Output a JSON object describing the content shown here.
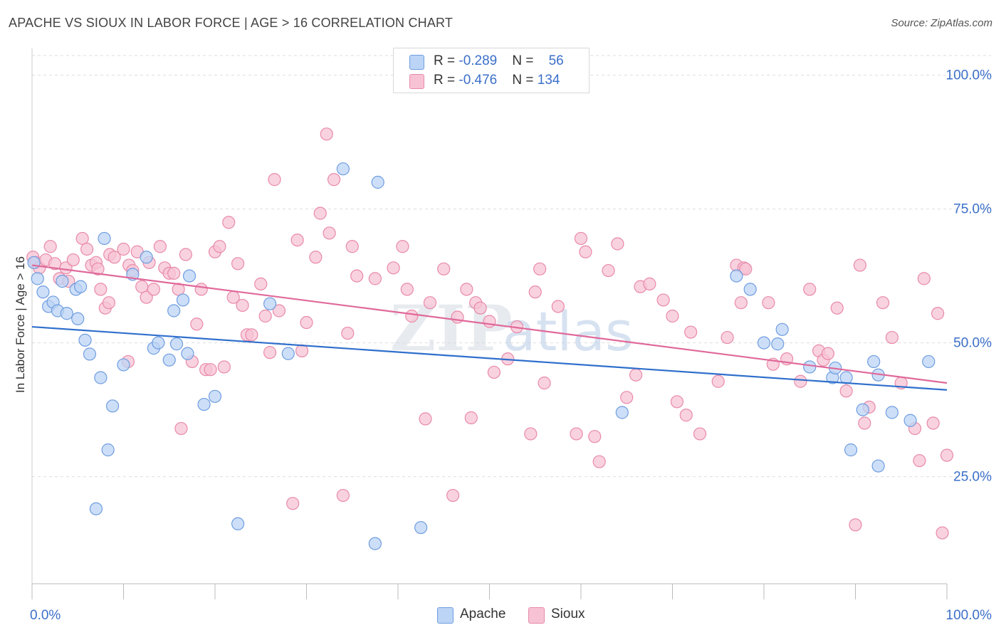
{
  "header": {
    "title": "APACHE VS SIOUX IN LABOR FORCE | AGE > 16 CORRELATION CHART",
    "source": "Source: ZipAtlas.com"
  },
  "watermark": {
    "zip": "ZIP",
    "atlas": "atlas"
  },
  "legend": {
    "rows": [
      {
        "r_label": "R = ",
        "r_value": "-0.289",
        "n_label": "N = ",
        "n_value": "56"
      },
      {
        "r_label": "R = ",
        "r_value": "-0.476",
        "n_label": "N = ",
        "n_value": "134"
      }
    ]
  },
  "colors": {
    "apache_fill": "#bcd4f5",
    "apache_stroke": "#6f9de0",
    "apache_line": "#2f6fcc",
    "sioux_fill": "#f7c3d4",
    "sioux_stroke": "#e88aa8",
    "sioux_line": "#e0699a",
    "axis_text": "#3b6fc9",
    "grid": "#dddddd"
  },
  "chart_data": {
    "type": "scatter",
    "title": "APACHE VS SIOUX IN LABOR FORCE | AGE > 16 CORRELATION CHART",
    "xlabel": "",
    "ylabel": "In Labor Force | Age > 16",
    "xlim": [
      0,
      100
    ],
    "ylim": [
      5,
      105
    ],
    "x_tick_labels": [
      "0.0%",
      "100.0%"
    ],
    "y_ticks": [
      25,
      50,
      75,
      100
    ],
    "y_tick_labels": [
      "25.0%",
      "50.0%",
      "75.0%",
      "100.0%"
    ],
    "grid": "horizontal dashed",
    "legend_position": "top-center",
    "series": [
      {
        "name": "Apache",
        "r": -0.289,
        "n": 56,
        "trend": {
          "x": [
            0,
            100
          ],
          "y": [
            53.0,
            41.2
          ]
        },
        "points": [
          [
            0.2,
            65.0
          ],
          [
            0.6,
            62.0
          ],
          [
            1.2,
            59.5
          ],
          [
            1.8,
            56.8
          ],
          [
            2.3,
            57.6
          ],
          [
            2.8,
            56.0
          ],
          [
            3.3,
            61.5
          ],
          [
            3.8,
            55.5
          ],
          [
            4.8,
            60.0
          ],
          [
            5.0,
            54.5
          ],
          [
            5.3,
            60.5
          ],
          [
            5.8,
            50.5
          ],
          [
            6.3,
            47.9
          ],
          [
            7.0,
            19.0
          ],
          [
            7.5,
            43.5
          ],
          [
            7.9,
            69.5
          ],
          [
            8.3,
            30.0
          ],
          [
            8.8,
            38.2
          ],
          [
            10.0,
            45.9
          ],
          [
            11.0,
            62.8
          ],
          [
            12.5,
            66.0
          ],
          [
            13.3,
            49.0
          ],
          [
            13.8,
            50.0
          ],
          [
            15.0,
            46.8
          ],
          [
            15.5,
            56.0
          ],
          [
            15.8,
            49.8
          ],
          [
            16.5,
            58.0
          ],
          [
            17.0,
            48.0
          ],
          [
            17.2,
            62.5
          ],
          [
            18.8,
            38.5
          ],
          [
            20.0,
            40.0
          ],
          [
            22.5,
            16.2
          ],
          [
            26.0,
            57.3
          ],
          [
            28.0,
            48.0
          ],
          [
            34.0,
            82.5
          ],
          [
            37.5,
            12.5
          ],
          [
            37.8,
            80.0
          ],
          [
            42.5,
            15.5
          ],
          [
            64.5,
            37.0
          ],
          [
            77.0,
            62.5
          ],
          [
            78.5,
            60.0
          ],
          [
            80.0,
            50.0
          ],
          [
            81.5,
            49.8
          ],
          [
            82.0,
            52.5
          ],
          [
            85.0,
            45.5
          ],
          [
            87.5,
            43.5
          ],
          [
            87.8,
            45.3
          ],
          [
            89.0,
            43.5
          ],
          [
            89.5,
            30.0
          ],
          [
            90.8,
            37.5
          ],
          [
            92.5,
            27.0
          ],
          [
            92.0,
            46.5
          ],
          [
            92.5,
            44.0
          ],
          [
            94.0,
            37.0
          ],
          [
            96.0,
            35.5
          ],
          [
            98.0,
            46.5
          ]
        ]
      },
      {
        "name": "Sioux",
        "r": -0.476,
        "n": 134,
        "trend": {
          "x": [
            0,
            100
          ],
          "y": [
            64.5,
            42.5
          ]
        },
        "points": [
          [
            0.1,
            66.0
          ],
          [
            0.4,
            65.0
          ],
          [
            0.8,
            64.0
          ],
          [
            1.5,
            65.5
          ],
          [
            2.0,
            68.0
          ],
          [
            2.5,
            64.8
          ],
          [
            3.0,
            62.0
          ],
          [
            3.7,
            64.0
          ],
          [
            4.0,
            61.5
          ],
          [
            4.5,
            65.5
          ],
          [
            5.5,
            69.5
          ],
          [
            6.0,
            67.5
          ],
          [
            6.5,
            64.5
          ],
          [
            7.0,
            65.0
          ],
          [
            7.2,
            63.8
          ],
          [
            7.5,
            60.0
          ],
          [
            8.0,
            56.5
          ],
          [
            8.4,
            57.5
          ],
          [
            8.5,
            66.5
          ],
          [
            9.0,
            66.0
          ],
          [
            10.0,
            67.5
          ],
          [
            10.5,
            46.5
          ],
          [
            10.6,
            64.5
          ],
          [
            11.0,
            63.5
          ],
          [
            11.5,
            67.0
          ],
          [
            12.0,
            60.5
          ],
          [
            12.5,
            58.5
          ],
          [
            12.8,
            65.0
          ],
          [
            13.3,
            60.0
          ],
          [
            14.0,
            68.0
          ],
          [
            14.5,
            64.0
          ],
          [
            15.0,
            63.0
          ],
          [
            15.5,
            63.0
          ],
          [
            16.0,
            60.0
          ],
          [
            16.3,
            34.0
          ],
          [
            16.8,
            66.5
          ],
          [
            17.5,
            46.5
          ],
          [
            18.0,
            53.5
          ],
          [
            18.5,
            60.0
          ],
          [
            19.0,
            45.0
          ],
          [
            19.5,
            45.0
          ],
          [
            20.0,
            67.0
          ],
          [
            20.5,
            68.0
          ],
          [
            21.0,
            45.5
          ],
          [
            21.5,
            72.5
          ],
          [
            22.0,
            58.5
          ],
          [
            22.5,
            64.8
          ],
          [
            23.0,
            57.0
          ],
          [
            23.5,
            51.5
          ],
          [
            24.0,
            51.5
          ],
          [
            25.0,
            61.0
          ],
          [
            25.5,
            55.0
          ],
          [
            26.0,
            48.2
          ],
          [
            26.5,
            80.5
          ],
          [
            27.0,
            56.0
          ],
          [
            28.5,
            20.0
          ],
          [
            29.0,
            69.2
          ],
          [
            29.5,
            48.5
          ],
          [
            30.0,
            53.8
          ],
          [
            31.0,
            66.0
          ],
          [
            31.5,
            74.2
          ],
          [
            32.2,
            89.0
          ],
          [
            32.5,
            70.5
          ],
          [
            33.0,
            80.5
          ],
          [
            34.0,
            21.5
          ],
          [
            34.5,
            51.8
          ],
          [
            35.0,
            68.0
          ],
          [
            35.5,
            62.5
          ],
          [
            37.5,
            62.0
          ],
          [
            39.5,
            64.0
          ],
          [
            40.5,
            68.0
          ],
          [
            41.0,
            60.0
          ],
          [
            41.5,
            55.0
          ],
          [
            43.0,
            35.8
          ],
          [
            43.5,
            57.5
          ],
          [
            45.0,
            63.8
          ],
          [
            46.0,
            21.5
          ],
          [
            46.5,
            54.8
          ],
          [
            47.5,
            60.0
          ],
          [
            48.0,
            36.0
          ],
          [
            48.5,
            57.5
          ],
          [
            49.0,
            56.5
          ],
          [
            50.0,
            54.0
          ],
          [
            50.5,
            44.5
          ],
          [
            52.0,
            47.0
          ],
          [
            53.0,
            53.0
          ],
          [
            54.5,
            33.0
          ],
          [
            55.0,
            59.5
          ],
          [
            55.5,
            63.8
          ],
          [
            56.0,
            42.5
          ],
          [
            57.5,
            56.8
          ],
          [
            59.5,
            33.0
          ],
          [
            60.0,
            69.5
          ],
          [
            60.5,
            67.0
          ],
          [
            61.5,
            32.5
          ],
          [
            62.0,
            27.8
          ],
          [
            63.0,
            63.5
          ],
          [
            64.0,
            68.5
          ],
          [
            65.0,
            39.8
          ],
          [
            66.0,
            44.0
          ],
          [
            66.5,
            60.5
          ],
          [
            67.5,
            61.0
          ],
          [
            69.0,
            58.0
          ],
          [
            70.0,
            55.0
          ],
          [
            70.5,
            39.0
          ],
          [
            71.5,
            36.5
          ],
          [
            72.0,
            52.0
          ],
          [
            73.0,
            33.0
          ],
          [
            75.0,
            42.8
          ],
          [
            76.0,
            51.0
          ],
          [
            77.0,
            64.5
          ],
          [
            77.5,
            57.5
          ],
          [
            77.8,
            64.0
          ],
          [
            78.0,
            63.8
          ],
          [
            80.5,
            57.5
          ],
          [
            81.0,
            46.0
          ],
          [
            82.5,
            47.0
          ],
          [
            84.0,
            42.8
          ],
          [
            85.0,
            60.0
          ],
          [
            86.0,
            48.5
          ],
          [
            86.5,
            46.8
          ],
          [
            87.0,
            48.0
          ],
          [
            88.0,
            56.5
          ],
          [
            89.0,
            41.0
          ],
          [
            90.0,
            16.0
          ],
          [
            90.5,
            64.5
          ],
          [
            91.0,
            35.0
          ],
          [
            91.5,
            38.0
          ],
          [
            93.0,
            57.5
          ],
          [
            94.0,
            51.0
          ],
          [
            95.0,
            42.5
          ],
          [
            96.5,
            34.0
          ],
          [
            97.0,
            28.0
          ],
          [
            97.5,
            62.0
          ],
          [
            98.5,
            35.0
          ],
          [
            99.0,
            55.5
          ],
          [
            99.5,
            14.5
          ],
          [
            100.0,
            29.0
          ]
        ]
      }
    ]
  }
}
